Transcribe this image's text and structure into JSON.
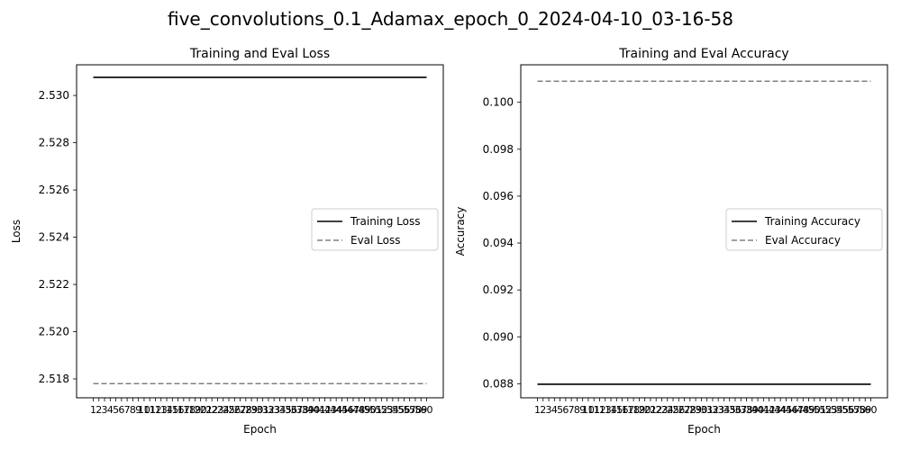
{
  "suptitle": "five_convolutions_0.1_Adamax_epoch_0_2024-04-10_03-16-58",
  "chart_data": [
    {
      "type": "line",
      "title": "Training and Eval Loss",
      "xlabel": "Epoch",
      "ylabel": "Loss",
      "x": [
        1,
        2,
        3,
        4,
        5,
        6,
        7,
        8,
        9,
        10,
        11,
        12,
        13,
        14,
        15,
        16,
        17,
        18,
        19,
        20,
        21,
        22,
        23,
        24,
        25,
        26,
        27,
        28,
        29,
        30,
        31,
        32,
        33,
        34,
        35,
        36,
        37,
        38,
        39,
        40,
        41,
        42,
        43,
        44,
        45,
        46,
        47,
        48,
        49,
        50,
        51,
        52,
        53,
        54,
        55,
        56,
        57,
        58,
        59,
        60
      ],
      "ylim": [
        2.5172,
        2.5313
      ],
      "yticks": [
        2.518,
        2.52,
        2.522,
        2.524,
        2.526,
        2.528,
        2.53
      ],
      "ytick_labels": [
        "2.518",
        "2.520",
        "2.522",
        "2.524",
        "2.526",
        "2.528",
        "2.530"
      ],
      "series": [
        {
          "name": "Training Loss",
          "color": "#000000",
          "dash": "solid",
          "values": [
            2.53077,
            2.53077,
            2.53077,
            2.53077,
            2.53077,
            2.53077,
            2.53077,
            2.53077,
            2.53077,
            2.53077,
            2.53077,
            2.53077,
            2.53077,
            2.53077,
            2.53077,
            2.53077,
            2.53077,
            2.53077,
            2.53077,
            2.53077,
            2.53077,
            2.53077,
            2.53077,
            2.53077,
            2.53077,
            2.53077,
            2.53077,
            2.53077,
            2.53077,
            2.53077,
            2.53077,
            2.53077,
            2.53077,
            2.53077,
            2.53077,
            2.53077,
            2.53077,
            2.53077,
            2.53077,
            2.53077,
            2.53077,
            2.53077,
            2.53077,
            2.53077,
            2.53077,
            2.53077,
            2.53077,
            2.53077,
            2.53077,
            2.53077,
            2.53077,
            2.53077,
            2.53077,
            2.53077,
            2.53077,
            2.53077,
            2.53077,
            2.53077,
            2.53077,
            2.53077
          ]
        },
        {
          "name": "Eval Loss",
          "color": "#808080",
          "dash": "dashed",
          "values": [
            2.5178,
            2.5178,
            2.5178,
            2.5178,
            2.5178,
            2.5178,
            2.5178,
            2.5178,
            2.5178,
            2.5178,
            2.5178,
            2.5178,
            2.5178,
            2.5178,
            2.5178,
            2.5178,
            2.5178,
            2.5178,
            2.5178,
            2.5178,
            2.5178,
            2.5178,
            2.5178,
            2.5178,
            2.5178,
            2.5178,
            2.5178,
            2.5178,
            2.5178,
            2.5178,
            2.5178,
            2.5178,
            2.5178,
            2.5178,
            2.5178,
            2.5178,
            2.5178,
            2.5178,
            2.5178,
            2.5178,
            2.5178,
            2.5178,
            2.5178,
            2.5178,
            2.5178,
            2.5178,
            2.5178,
            2.5178,
            2.5178,
            2.5178,
            2.5178,
            2.5178,
            2.5178,
            2.5178,
            2.5178,
            2.5178,
            2.5178,
            2.5178,
            2.5178,
            2.5178
          ]
        }
      ],
      "legend": "center-right",
      "grid": false
    },
    {
      "type": "line",
      "title": "Training and Eval Accuracy",
      "xlabel": "Epoch",
      "ylabel": "Accuracy",
      "x": [
        1,
        2,
        3,
        4,
        5,
        6,
        7,
        8,
        9,
        10,
        11,
        12,
        13,
        14,
        15,
        16,
        17,
        18,
        19,
        20,
        21,
        22,
        23,
        24,
        25,
        26,
        27,
        28,
        29,
        30,
        31,
        32,
        33,
        34,
        35,
        36,
        37,
        38,
        39,
        40,
        41,
        42,
        43,
        44,
        45,
        46,
        47,
        48,
        49,
        50,
        51,
        52,
        53,
        54,
        55,
        56,
        57,
        58,
        59,
        60
      ],
      "ylim": [
        0.0874,
        0.1016
      ],
      "yticks": [
        0.088,
        0.09,
        0.092,
        0.094,
        0.096,
        0.098,
        0.1
      ],
      "ytick_labels": [
        "0.088",
        "0.090",
        "0.092",
        "0.094",
        "0.096",
        "0.098",
        "0.100"
      ],
      "series": [
        {
          "name": "Training Accuracy",
          "color": "#000000",
          "dash": "solid",
          "values": [
            0.08798,
            0.08798,
            0.08798,
            0.08798,
            0.08798,
            0.08798,
            0.08798,
            0.08798,
            0.08798,
            0.08798,
            0.08798,
            0.08798,
            0.08798,
            0.08798,
            0.08798,
            0.08798,
            0.08798,
            0.08798,
            0.08798,
            0.08798,
            0.08798,
            0.08798,
            0.08798,
            0.08798,
            0.08798,
            0.08798,
            0.08798,
            0.08798,
            0.08798,
            0.08798,
            0.08798,
            0.08798,
            0.08798,
            0.08798,
            0.08798,
            0.08798,
            0.08798,
            0.08798,
            0.08798,
            0.08798,
            0.08798,
            0.08798,
            0.08798,
            0.08798,
            0.08798,
            0.08798,
            0.08798,
            0.08798,
            0.08798,
            0.08798,
            0.08798,
            0.08798,
            0.08798,
            0.08798,
            0.08798,
            0.08798,
            0.08798,
            0.08798,
            0.08798,
            0.08798
          ]
        },
        {
          "name": "Eval Accuracy",
          "color": "#808080",
          "dash": "dashed",
          "values": [
            0.1009,
            0.1009,
            0.1009,
            0.1009,
            0.1009,
            0.1009,
            0.1009,
            0.1009,
            0.1009,
            0.1009,
            0.1009,
            0.1009,
            0.1009,
            0.1009,
            0.1009,
            0.1009,
            0.1009,
            0.1009,
            0.1009,
            0.1009,
            0.1009,
            0.1009,
            0.1009,
            0.1009,
            0.1009,
            0.1009,
            0.1009,
            0.1009,
            0.1009,
            0.1009,
            0.1009,
            0.1009,
            0.1009,
            0.1009,
            0.1009,
            0.1009,
            0.1009,
            0.1009,
            0.1009,
            0.1009,
            0.1009,
            0.1009,
            0.1009,
            0.1009,
            0.1009,
            0.1009,
            0.1009,
            0.1009,
            0.1009,
            0.1009,
            0.1009,
            0.1009,
            0.1009,
            0.1009,
            0.1009,
            0.1009,
            0.1009,
            0.1009,
            0.1009,
            0.1009
          ]
        }
      ],
      "legend": "center-right",
      "grid": false
    }
  ]
}
